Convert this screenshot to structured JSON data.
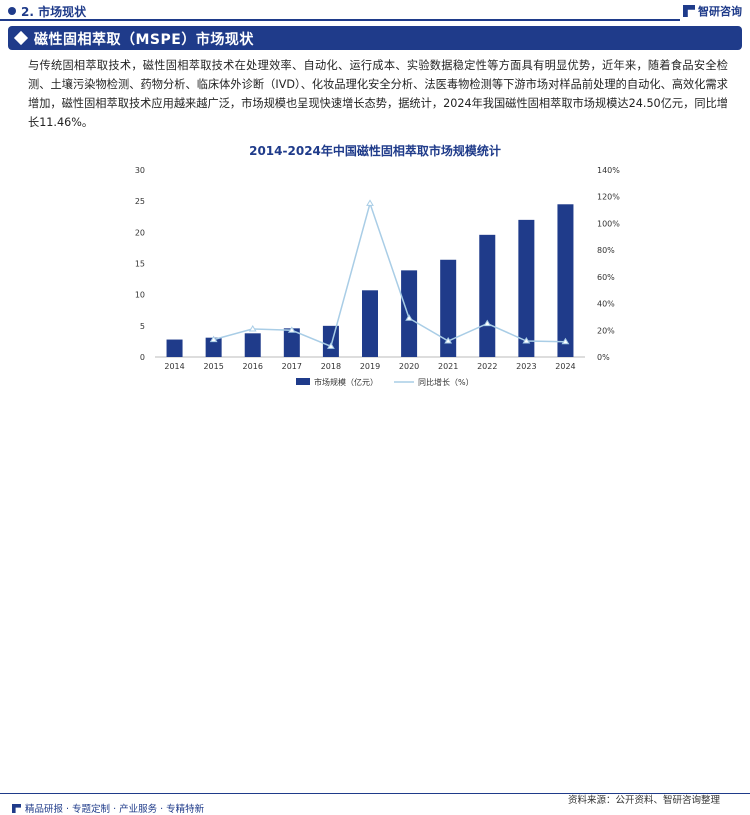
{
  "header": {
    "section_title": "2. 市场现状",
    "logo_text": "智研咨询"
  },
  "banner": {
    "title": "磁性固相萃取（MSPE）市场现状"
  },
  "paragraph": "与传统固相萃取技术，磁性固相萃取技术在处理效率、自动化、运行成本、实验数据稳定性等方面具有明显优势，近年来，随着食品安全检测、土壤污染物检测、药物分析、临床体外诊断（IVD）、化妆品理化安全分析、法医毒物检测等下游市场对样品前处理的自动化、高效化需求增加，磁性固相萃取技术应用越来越广泛，市场规模也呈现快速增长态势，据统计，2024年我国磁性固相萃取市场规模达24.50亿元，同比增长11.46%。",
  "chart_data": {
    "type": "bar",
    "title": "2014-2024年中国磁性固相萃取市场规模统计",
    "categories": [
      "2014",
      "2015",
      "2016",
      "2017",
      "2018",
      "2019",
      "2020",
      "2021",
      "2022",
      "2023",
      "2024"
    ],
    "series": [
      {
        "name": "市场规模（亿元）",
        "type": "bar",
        "axis": "left",
        "values": [
          2.8,
          3.1,
          3.8,
          4.6,
          5.0,
          10.7,
          13.9,
          15.6,
          19.6,
          22.0,
          24.5
        ]
      },
      {
        "name": "同比增长（%）",
        "type": "line",
        "axis": "right",
        "values": [
          null,
          13,
          21,
          20,
          8,
          115,
          29,
          12,
          25,
          12,
          11.46
        ]
      }
    ],
    "y_left": {
      "min": 0,
      "max": 30,
      "ticks": [
        "0",
        "5",
        "10",
        "15",
        "20",
        "25",
        "30"
      ]
    },
    "y_right": {
      "min": 0,
      "max": 140,
      "ticks": [
        "0%",
        "20%",
        "40%",
        "60%",
        "80%",
        "100%",
        "120%",
        "140%"
      ]
    },
    "legend_position": "bottom",
    "grid": false,
    "colors": {
      "bar": "#1f3b8a",
      "line": "#a9cde6"
    }
  },
  "footer": {
    "left_text": "精品研报 · 专题定制 · 产业服务 · 专精特新",
    "source": "资料来源：公开资料、智研咨询整理"
  }
}
